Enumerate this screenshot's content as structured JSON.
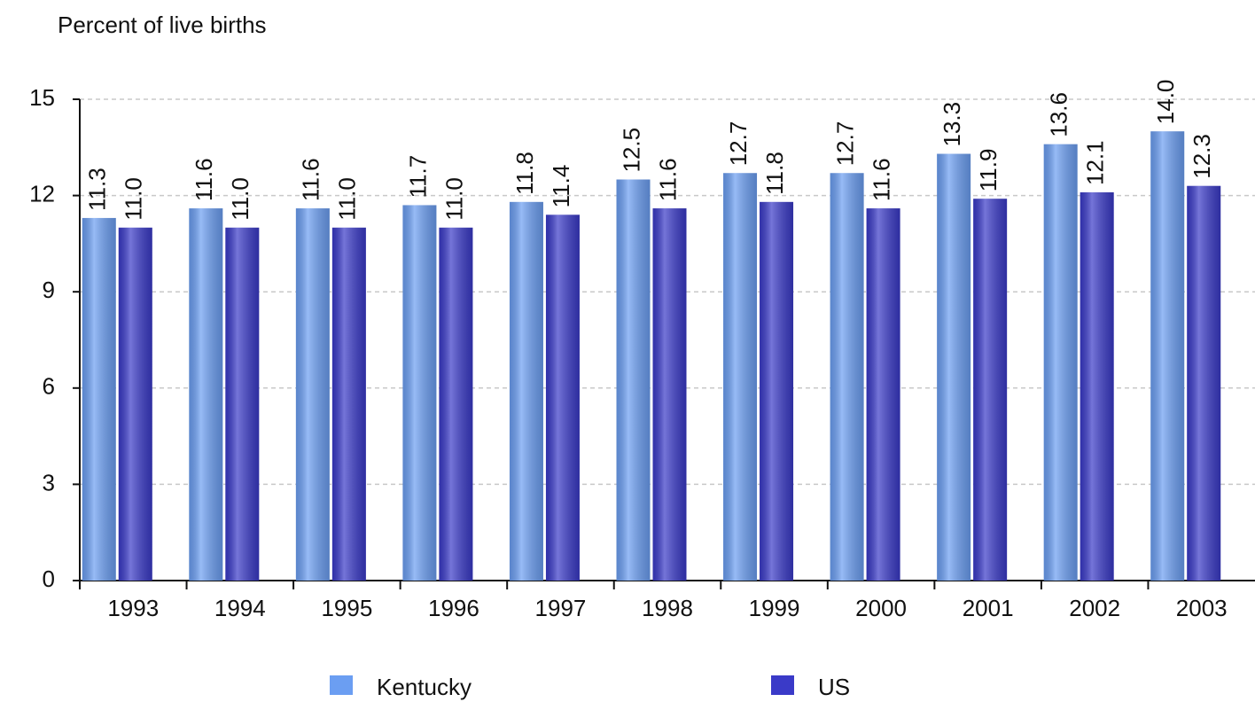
{
  "chart_data": {
    "type": "bar",
    "y_label": "Percent of live births",
    "categories": [
      "1993",
      "1994",
      "1995",
      "1996",
      "1997",
      "1998",
      "1999",
      "2000",
      "2001",
      "2002",
      "2003"
    ],
    "series": [
      {
        "name": "Kentucky",
        "color": "#6b9ef2",
        "values": [
          11.3,
          11.6,
          11.6,
          11.7,
          11.8,
          12.5,
          12.7,
          12.7,
          13.3,
          13.6,
          14.0
        ],
        "value_labels": [
          "11.3",
          "11.6",
          "11.6",
          "11.7",
          "11.8",
          "12.5",
          "12.7",
          "12.7",
          "13.3",
          "13.6",
          "14.0"
        ]
      },
      {
        "name": "US",
        "color": "#3a3ac8",
        "values": [
          11.0,
          11.0,
          11.0,
          11.0,
          11.4,
          11.6,
          11.8,
          11.6,
          11.9,
          12.1,
          12.3
        ],
        "value_labels": [
          "11.0",
          "11.0",
          "11.0",
          "11.0",
          "11.4",
          "11.6",
          "11.8",
          "11.6",
          "11.9",
          "12.1",
          "12.3"
        ]
      }
    ],
    "ylim": [
      0,
      15
    ],
    "yticks": [
      0,
      3,
      6,
      9,
      12,
      15
    ],
    "grid": true,
    "legend": "bottom"
  }
}
